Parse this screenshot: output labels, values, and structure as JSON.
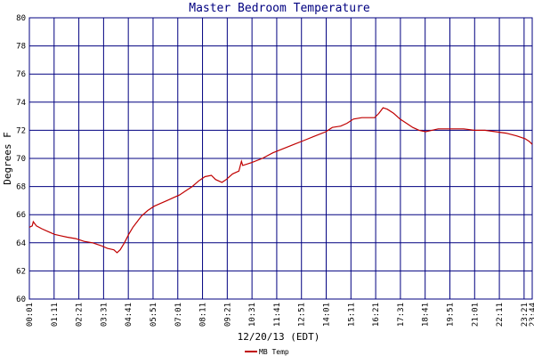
{
  "chart_data": {
    "type": "line",
    "title": "Master Bedroom Temperature",
    "xlabel": "12/20/13 (EDT)",
    "ylabel": "Degrees F",
    "ylim": [
      60,
      80
    ],
    "yticks": [
      60,
      62,
      64,
      66,
      68,
      70,
      72,
      74,
      76,
      78,
      80
    ],
    "xlim_hours": [
      0.0167,
      23.7333
    ],
    "xticks": [
      {
        "h": 0.0167,
        "label": "00:01"
      },
      {
        "h": 1.1833,
        "label": "01:11"
      },
      {
        "h": 2.35,
        "label": "02:21"
      },
      {
        "h": 3.5167,
        "label": "03:31"
      },
      {
        "h": 4.6833,
        "label": "04:41"
      },
      {
        "h": 5.85,
        "label": "05:51"
      },
      {
        "h": 7.0167,
        "label": "07:01"
      },
      {
        "h": 8.1833,
        "label": "08:11"
      },
      {
        "h": 9.35,
        "label": "09:21"
      },
      {
        "h": 10.5167,
        "label": "10:31"
      },
      {
        "h": 11.6833,
        "label": "11:41"
      },
      {
        "h": 12.85,
        "label": "12:51"
      },
      {
        "h": 14.0167,
        "label": "14:01"
      },
      {
        "h": 15.1833,
        "label": "15:11"
      },
      {
        "h": 16.35,
        "label": "16:21"
      },
      {
        "h": 17.5167,
        "label": "17:31"
      },
      {
        "h": 18.6833,
        "label": "18:41"
      },
      {
        "h": 19.85,
        "label": "19:51"
      },
      {
        "h": 21.0167,
        "label": "21:01"
      },
      {
        "h": 22.1833,
        "label": "22:11"
      },
      {
        "h": 23.35,
        "label": "23:21"
      },
      {
        "h": 23.7333,
        "label": "23:44"
      }
    ],
    "grid": true,
    "legend": "bottom-center",
    "series": [
      {
        "name": "MB Temp",
        "color": "#c00000",
        "points": [
          [
            0.0167,
            65.1
          ],
          [
            0.15,
            65.2
          ],
          [
            0.2,
            65.5
          ],
          [
            0.35,
            65.2
          ],
          [
            0.6,
            65.0
          ],
          [
            0.9,
            64.8
          ],
          [
            1.2,
            64.6
          ],
          [
            1.5,
            64.5
          ],
          [
            1.8,
            64.4
          ],
          [
            2.2,
            64.3
          ],
          [
            2.6,
            64.1
          ],
          [
            3.0,
            64.0
          ],
          [
            3.4,
            63.8
          ],
          [
            3.7,
            63.6
          ],
          [
            4.0,
            63.5
          ],
          [
            4.15,
            63.3
          ],
          [
            4.3,
            63.5
          ],
          [
            4.5,
            64.0
          ],
          [
            4.7,
            64.6
          ],
          [
            4.9,
            65.1
          ],
          [
            5.1,
            65.5
          ],
          [
            5.3,
            65.9
          ],
          [
            5.6,
            66.3
          ],
          [
            5.9,
            66.6
          ],
          [
            6.2,
            66.8
          ],
          [
            6.5,
            67.0
          ],
          [
            6.8,
            67.2
          ],
          [
            7.1,
            67.4
          ],
          [
            7.4,
            67.7
          ],
          [
            7.7,
            68.0
          ],
          [
            8.0,
            68.4
          ],
          [
            8.3,
            68.7
          ],
          [
            8.6,
            68.8
          ],
          [
            8.8,
            68.5
          ],
          [
            9.1,
            68.3
          ],
          [
            9.3,
            68.5
          ],
          [
            9.6,
            68.9
          ],
          [
            9.9,
            69.1
          ],
          [
            10.02,
            69.8
          ],
          [
            10.08,
            69.5
          ],
          [
            10.5,
            69.7
          ],
          [
            11.0,
            70.0
          ],
          [
            11.5,
            70.4
          ],
          [
            12.0,
            70.7
          ],
          [
            12.5,
            71.0
          ],
          [
            13.0,
            71.3
          ],
          [
            13.5,
            71.6
          ],
          [
            14.0,
            71.9
          ],
          [
            14.3,
            72.2
          ],
          [
            14.7,
            72.3
          ],
          [
            15.0,
            72.5
          ],
          [
            15.3,
            72.8
          ],
          [
            15.7,
            72.9
          ],
          [
            16.0,
            72.9
          ],
          [
            16.3,
            72.9
          ],
          [
            16.5,
            73.2
          ],
          [
            16.7,
            73.6
          ],
          [
            16.9,
            73.5
          ],
          [
            17.2,
            73.2
          ],
          [
            17.5,
            72.8
          ],
          [
            17.8,
            72.5
          ],
          [
            18.1,
            72.2
          ],
          [
            18.4,
            72.0
          ],
          [
            18.7,
            71.9
          ],
          [
            19.0,
            72.0
          ],
          [
            19.3,
            72.1
          ],
          [
            20.0,
            72.1
          ],
          [
            20.5,
            72.1
          ],
          [
            21.0,
            72.0
          ],
          [
            21.5,
            72.0
          ],
          [
            22.0,
            71.9
          ],
          [
            22.5,
            71.8
          ],
          [
            23.0,
            71.6
          ],
          [
            23.4,
            71.4
          ],
          [
            23.6,
            71.2
          ],
          [
            23.7333,
            71.0
          ]
        ]
      }
    ]
  }
}
